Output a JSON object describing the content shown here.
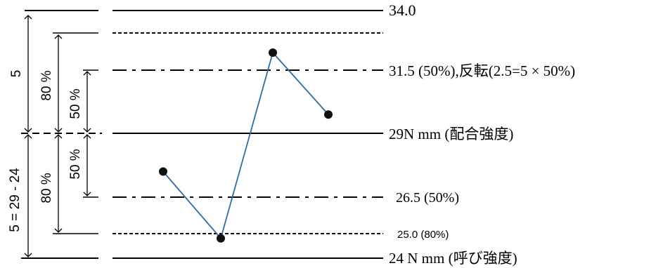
{
  "labels": {
    "line_340": "34.0",
    "line_315": "31.5 (50%),反転(2.5=5 × 50%)",
    "line_29": "29N mm (配合強度)",
    "line_265": "26.5 (50%)",
    "line_250": "25.0 (80%)",
    "line_24": "24 N mm (呼び強度)",
    "dim_5": "5",
    "dim_80_upper": "80 %",
    "dim_50_upper": "50 %",
    "dim_5_eq": "5 = 29 - 24",
    "dim_80_lower": "80 %",
    "dim_50_lower": "50 %"
  },
  "data_points": [
    {
      "order": 1,
      "strength": 27.5
    },
    {
      "order": 2,
      "strength": 24.8
    },
    {
      "order": 3,
      "strength": 32.3
    },
    {
      "order": 4,
      "strength": 29.8
    }
  ],
  "colors": {
    "series_line": "#2e6da4",
    "points": "#111111",
    "lines": "#000000"
  }
}
